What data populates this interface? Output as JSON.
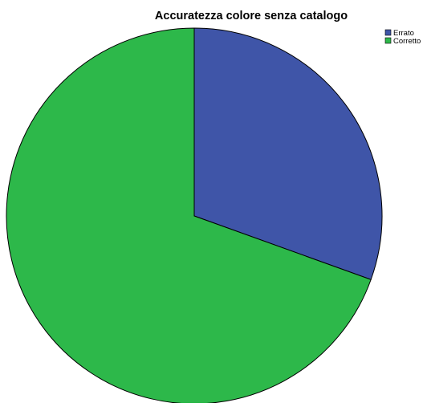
{
  "chart_data": {
    "type": "pie",
    "title": "Accuratezza colore senza catalogo",
    "slices": [
      {
        "label": "Errato",
        "value": 30.5,
        "color": "#3f55a8"
      },
      {
        "label": "Corretto",
        "value": 69.5,
        "color": "#2db84a"
      }
    ],
    "start_angle_deg": 0,
    "direction": "clockwise",
    "legend_position": "top-right",
    "slice_border_color": "#000000"
  }
}
